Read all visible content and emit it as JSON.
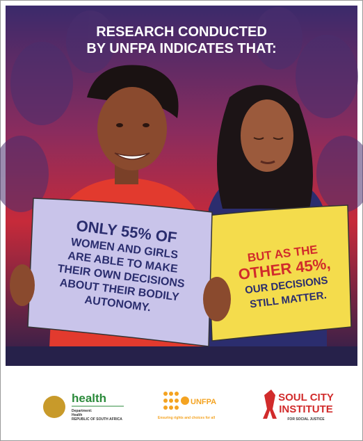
{
  "headline": {
    "lines": [
      "RESEARCH CONDUCTED",
      "BY UNFPA INDICATES THAT:"
    ]
  },
  "sign_left": {
    "lines": [
      "ONLY 55% OF",
      "WOMEN AND GIRLS",
      "ARE ABLE TO MAKE",
      "THEIR OWN DECISIONS",
      "ABOUT THEIR BODILY",
      "AUTONOMY."
    ]
  },
  "sign_right": {
    "lines": [
      "BUT AS THE",
      "OTHER 45%,",
      "OUR DECISIONS",
      "STILL MATTER."
    ]
  },
  "logos": {
    "health": {
      "name": "health",
      "line1": "Department:",
      "line2": "Health",
      "line3": "REPUBLIC OF SOUTH AFRICA"
    },
    "unfpa": {
      "name": "UNFPA",
      "tagline": "Ensuring rights and choices for all"
    },
    "soul_city": {
      "line1": "SOUL CITY",
      "line2": "INSTITUTE",
      "line3": "FOR SOCIAL JUSTICE"
    }
  }
}
